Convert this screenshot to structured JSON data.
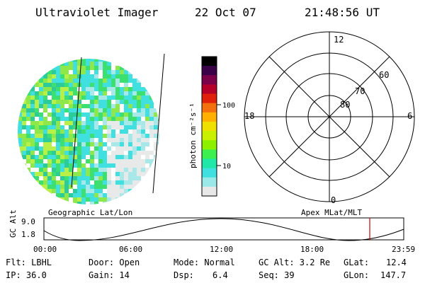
{
  "header": {
    "instrument": "Ultraviolet Imager",
    "date": "22 Oct 07",
    "time": "21:48:56 UT"
  },
  "colorbar": {
    "unit_label": "photon cm⁻²s⁻¹",
    "ticks": [
      {
        "label": "100",
        "value": 100
      },
      {
        "label": "10",
        "value": 10
      }
    ],
    "colors": [
      "#000000",
      "#3a0048",
      "#7a004a",
      "#b5002a",
      "#e0200a",
      "#f4700e",
      "#ffb000",
      "#f0e000",
      "#c8f000",
      "#8cf000",
      "#3cf050",
      "#20e8a8",
      "#40e0e0",
      "#9ae8e8",
      "#e8e8e8"
    ]
  },
  "polar": {
    "mlt_labels": [
      {
        "label": "12",
        "angle_deg": 90
      },
      {
        "label": "18",
        "angle_deg": 180
      },
      {
        "label": "6",
        "angle_deg": 0
      },
      {
        "label": "0",
        "angle_deg": 270
      }
    ],
    "lat_labels": [
      {
        "label": "80",
        "value": 80
      },
      {
        "label": "70",
        "value": 70
      },
      {
        "label": "60",
        "value": 60
      }
    ]
  },
  "image_panel": {
    "main_colors": [
      "#40e0e0",
      "#3ce070",
      "#8ee84a",
      "#b8f048",
      "#2ccc9a"
    ]
  },
  "orbit": {
    "left_title": "Geographic Lat/Lon",
    "right_title": "Apex MLat/MLT",
    "axis_label": "GC Alt",
    "y_ticks": [
      "9.0",
      "1.8"
    ],
    "time_ticks": [
      "00:00",
      "06:00",
      "12:00",
      "18:00",
      "23:59"
    ],
    "marker_color": "#cc0000"
  },
  "status": {
    "flt": "Flt: LBHL",
    "ip": "IP: 36.0",
    "door": "Door: Open",
    "gain": "Gain: 14",
    "mode": "Mode: Normal",
    "dsp_label": "Dsp:",
    "dsp_value": "6.4",
    "gc_alt": "GC Alt: 3.2 Re",
    "seq": "Seq: 39",
    "glat_label": "GLat:",
    "glat_value": "12.4",
    "glon_label": "GLon:",
    "glon_value": "147.7"
  }
}
